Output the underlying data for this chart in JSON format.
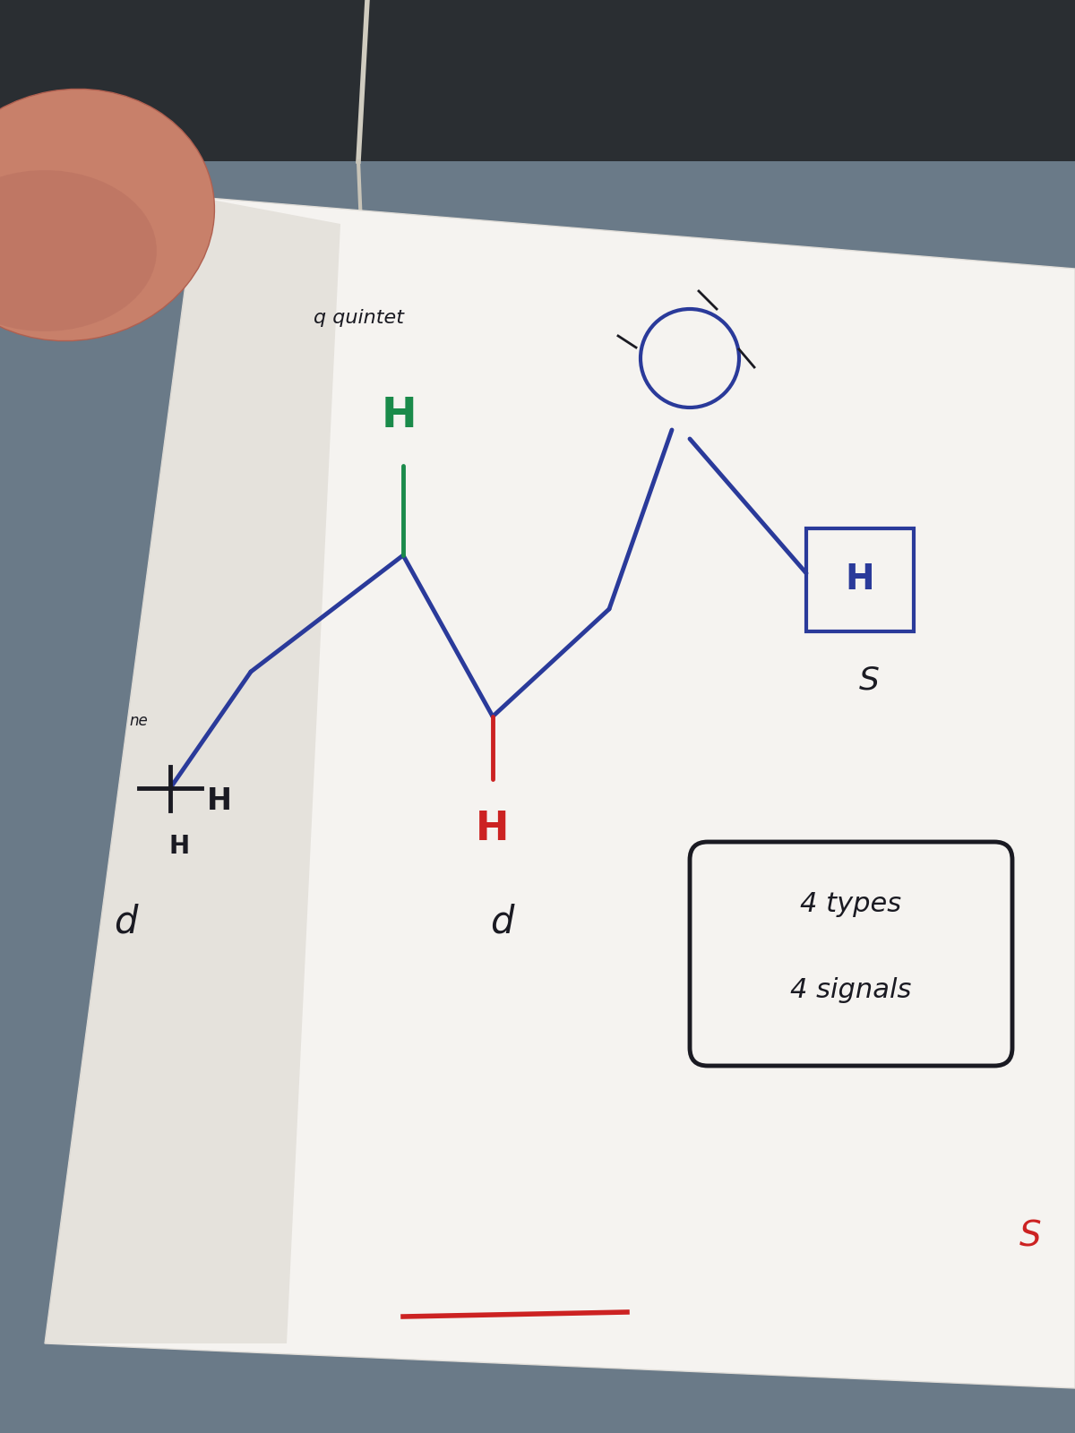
{
  "bg_color": "#6a7a88",
  "bg_dark_color": "#3a3f45",
  "paper_color": "#f5f3f0",
  "paper_shadow_color": "#d8d4cc",
  "finger_color": "#c8806a",
  "finger_shadow": "#b06050",
  "molecule_color": "#2a3a9a",
  "green_H_color": "#1a8a4a",
  "red_H_color": "#cc2222",
  "dark_color": "#1a1a22",
  "quintet_text": "q quintet",
  "info_text1": "4 types",
  "info_text2": "4 signals",
  "singlet_s": "S",
  "doublet_d": "d"
}
